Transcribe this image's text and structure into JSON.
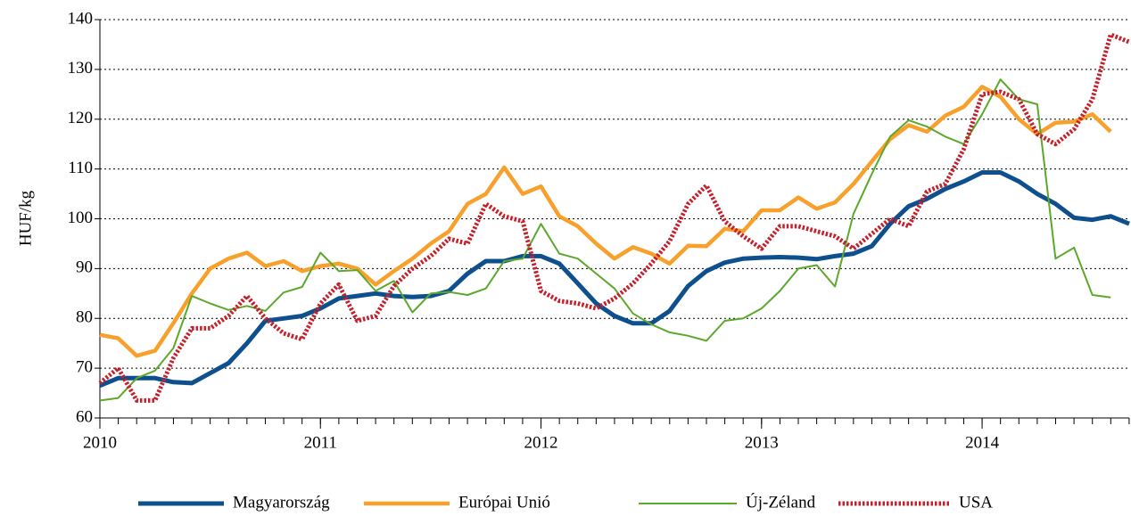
{
  "chart_data": {
    "type": "line",
    "y_label": "HUF/kg",
    "x": [
      2010,
      2010.083,
      2010.167,
      2010.25,
      2010.333,
      2010.417,
      2010.5,
      2010.583,
      2010.667,
      2010.75,
      2010.833,
      2010.917,
      2011,
      2011.083,
      2011.167,
      2011.25,
      2011.333,
      2011.417,
      2011.5,
      2011.583,
      2011.667,
      2011.75,
      2011.833,
      2011.917,
      2012,
      2012.083,
      2012.167,
      2012.25,
      2012.333,
      2012.417,
      2012.5,
      2012.583,
      2012.667,
      2012.75,
      2012.833,
      2012.917,
      2013,
      2013.083,
      2013.167,
      2013.25,
      2013.333,
      2013.417,
      2013.5,
      2013.583,
      2013.667,
      2013.75,
      2013.833,
      2013.917,
      2014,
      2014.083,
      2014.167,
      2014.25,
      2014.333,
      2014.417,
      2014.5,
      2014.583,
      2014.667
    ],
    "xlim": [
      2010,
      2014.667
    ],
    "xticks": [
      2010,
      2011,
      2012,
      2013,
      2014
    ],
    "ylim": [
      60,
      140
    ],
    "yticks": [
      60,
      70,
      80,
      90,
      100,
      110,
      120,
      130,
      140
    ],
    "grid": true,
    "legend": "bottom",
    "series": [
      {
        "name": "Magyarország",
        "color": "#0e4f8e",
        "line_width": 5,
        "line_style": "solid",
        "values": [
          66.5,
          68,
          68,
          68,
          67.2,
          67,
          69,
          71,
          75,
          79.5,
          80,
          80.5,
          82,
          84,
          84.5,
          85,
          84.5,
          84.3,
          84.5,
          85.5,
          89,
          91.5,
          91.5,
          92.5,
          92.5,
          91,
          87,
          83,
          80.5,
          79,
          79,
          81.5,
          86.5,
          89.5,
          91.2,
          92,
          92.2,
          92.3,
          92.2,
          91.9,
          92.5,
          93,
          94.5,
          99,
          102.5,
          104,
          106,
          107.5,
          109.3,
          109.3,
          107.5,
          105,
          103,
          100.2,
          99.8,
          100.5,
          99
        ]
      },
      {
        "name": "Európai Unió",
        "color": "#f7a12c",
        "line_width": 4.5,
        "line_style": "solid",
        "values": [
          76.7,
          76,
          72.5,
          73.5,
          79,
          85,
          90,
          92,
          93.2,
          90.5,
          91.5,
          89.5,
          90.5,
          91,
          90,
          86.8,
          89.5,
          92,
          95,
          97.5,
          103,
          105,
          110.3,
          105,
          106.5,
          100.5,
          98.5,
          95,
          92,
          94.3,
          93,
          91,
          94.6,
          94.5,
          98,
          97.5,
          101.7,
          101.7,
          104.3,
          102,
          103.3,
          107,
          111.5,
          116,
          118.8,
          117.5,
          120.7,
          122.5,
          126.5,
          124.5,
          120,
          117,
          119.3,
          119.5,
          121,
          117.5,
          null
        ]
      },
      {
        "name": "Új-Zéland",
        "color": "#5ca82b",
        "line_width": 2,
        "line_style": "solid",
        "values": [
          63.5,
          64,
          68,
          69.5,
          74,
          84.5,
          83,
          81.7,
          82.5,
          81.5,
          85.2,
          86.3,
          93.2,
          89.5,
          89.7,
          85.5,
          87.5,
          81.2,
          85,
          85.3,
          84.7,
          86,
          91.5,
          92,
          99,
          93,
          92,
          89,
          86,
          81,
          78.8,
          77.2,
          76.5,
          75.5,
          79.5,
          80,
          82,
          85.5,
          90,
          90.7,
          86.4,
          101,
          109,
          116.5,
          119.8,
          118.5,
          116.5,
          115,
          121,
          128,
          124,
          123,
          92,
          94.2,
          84.7,
          84.2,
          null
        ]
      },
      {
        "name": "USA",
        "color": "#c4202b",
        "line_width": 5,
        "line_style": "dotted",
        "values": [
          67,
          70,
          63.5,
          63.5,
          72,
          78,
          78,
          80.5,
          84.5,
          80,
          77,
          75.8,
          83,
          86.8,
          79.5,
          80.5,
          86.5,
          90,
          92.5,
          96,
          95,
          103,
          100.5,
          99.5,
          85.5,
          83.5,
          83,
          82,
          84,
          87,
          91,
          95.5,
          103,
          106.7,
          99.5,
          96.5,
          94,
          98.5,
          98.5,
          97.5,
          96.5,
          94,
          97,
          100,
          98.5,
          105.5,
          107,
          114,
          125,
          125.5,
          124,
          117,
          115,
          118,
          124,
          137,
          135.5
        ]
      }
    ]
  }
}
